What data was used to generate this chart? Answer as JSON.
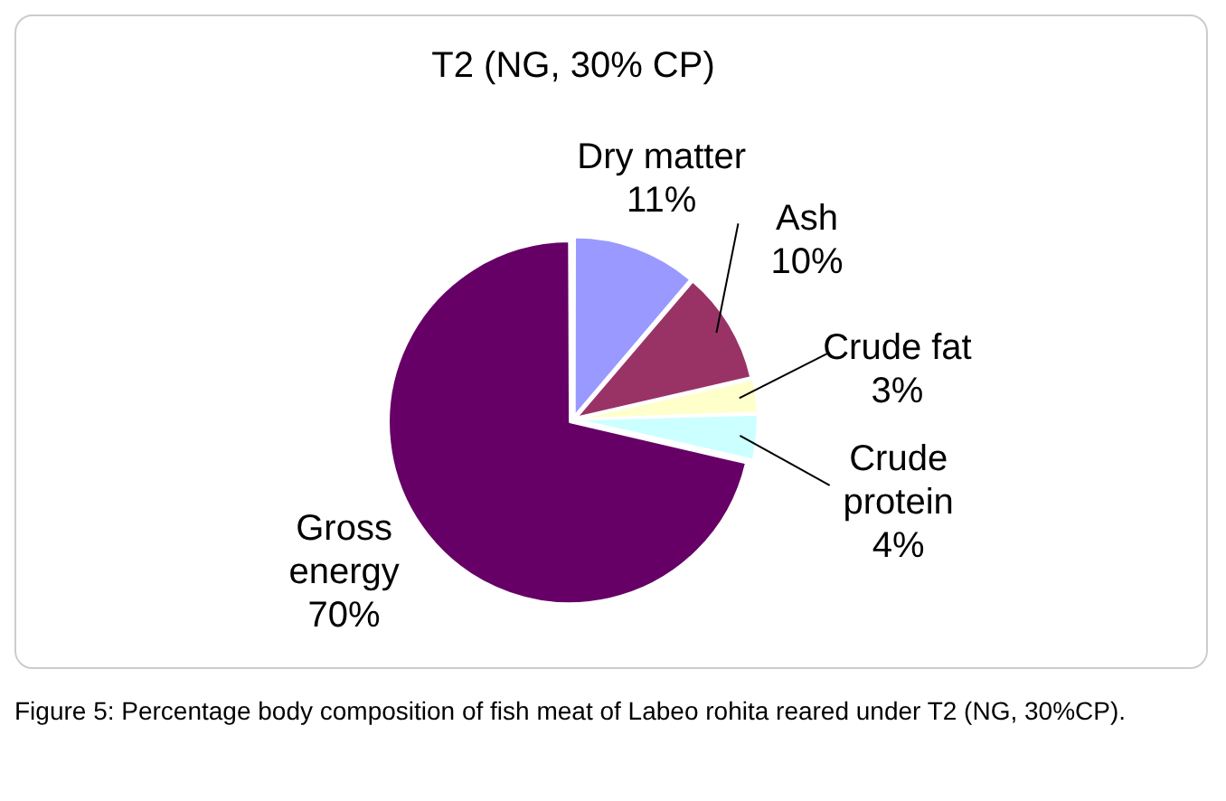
{
  "chart_data": {
    "type": "pie",
    "title": "T2 (NG, 30% CP)",
    "categories": [
      "Dry matter",
      "Ash",
      "Crude fat",
      "Crude protein",
      "Gross energy"
    ],
    "values": [
      11,
      10,
      3,
      4,
      70
    ],
    "value_labels": [
      "11%",
      "10%",
      "3%",
      "4%",
      "70%"
    ],
    "colors": [
      "#9999ff",
      "#993366",
      "#ffffcc",
      "#ccffff",
      "#660066"
    ],
    "legend": false,
    "annotations": [
      "Figure 5: Percentage body composition of fish meat of Labeo rohita reared under T2 (NG, 30%CP)."
    ]
  }
}
